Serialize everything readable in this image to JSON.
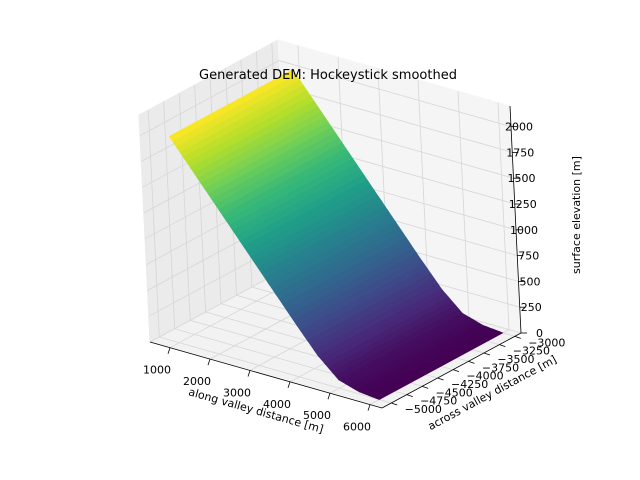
{
  "chart_data": {
    "type": "surface",
    "title": "Generated DEM: Hockeystick smoothed",
    "xlabel": "along valley distance [m]",
    "ylabel": "across valley distance [m]",
    "zlabel": "surface elevation [m]",
    "xlim": [
      500,
      6300
    ],
    "ylim": [
      -5150,
      -2900
    ],
    "zlim": [
      0,
      2200
    ],
    "xticks": [
      1000,
      2000,
      3000,
      4000,
      5000,
      6000
    ],
    "yticks": [
      -5000,
      -4750,
      -4500,
      -4250,
      -4000,
      -3750,
      -3500,
      -3250,
      -3000
    ],
    "zticks": [
      0,
      250,
      500,
      750,
      1000,
      1250,
      1500,
      1750,
      2000
    ],
    "xtick_labels": [
      "1000",
      "2000",
      "3000",
      "4000",
      "5000",
      "6000"
    ],
    "ytick_labels": [
      "−5000",
      "−4750",
      "−4500",
      "−4250",
      "−4000",
      "−3750",
      "−3500",
      "−3250",
      "−3000"
    ],
    "ztick_labels": [
      "0",
      "250",
      "500",
      "750",
      "1000",
      "1250",
      "1500",
      "1750",
      "2000"
    ],
    "x_range": [
      1000,
      6000
    ],
    "y_range": [
      -5000,
      -3000
    ],
    "profile": {
      "x": [
        1000,
        1500,
        2000,
        2500,
        3000,
        3500,
        4000,
        4500,
        5000,
        5500,
        6000
      ],
      "z": [
        2000,
        1750,
        1500,
        1250,
        1000,
        750,
        500,
        260,
        80,
        20,
        0
      ]
    },
    "colormap": "viridis",
    "grid": true
  }
}
